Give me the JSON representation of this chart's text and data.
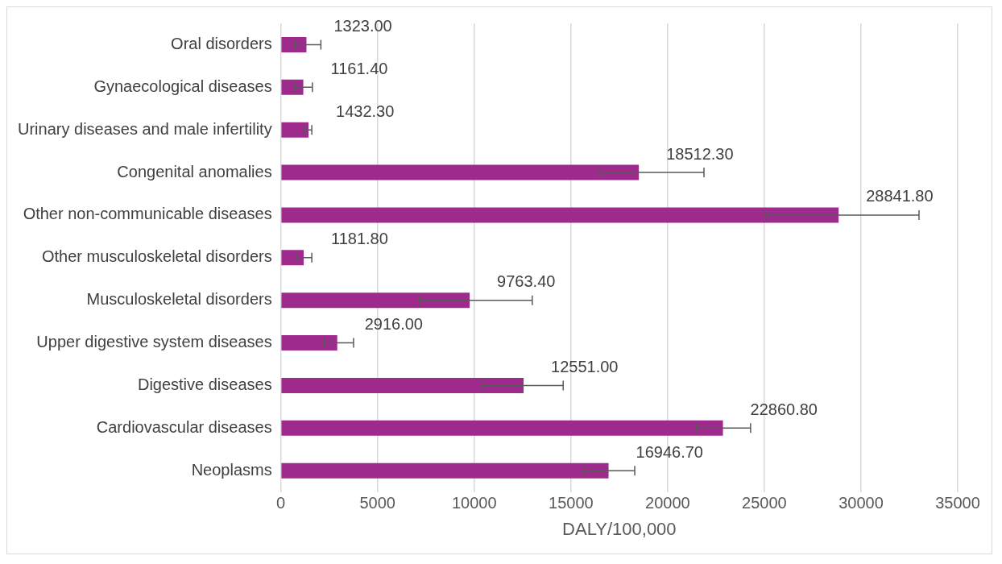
{
  "chart_data": {
    "type": "bar",
    "orientation": "horizontal",
    "xlabel": "DALY/100,000",
    "categories": [
      "Oral disorders",
      "Gynaecological diseases",
      "Urinary diseases and male infertility",
      "Congenital anomalies",
      "Other non-communicable diseases",
      "Other musculoskeletal disorders",
      "Musculoskeletal disorders",
      "Upper digestive system diseases",
      "Digestive diseases",
      "Cardiovascular diseases",
      "Neoplasms"
    ],
    "values": [
      1323.0,
      1161.4,
      1432.3,
      18512.3,
      28841.8,
      1181.8,
      9763.4,
      2916.0,
      12551.0,
      22860.8,
      16946.7
    ],
    "value_labels": [
      "1323.00",
      "1161.40",
      "1432.30",
      "18512.30",
      "28841.80",
      "1181.80",
      "9763.40",
      "2916.00",
      "12551.00",
      "22860.80",
      "16946.70"
    ],
    "errors": [
      [
        750,
        2070
      ],
      [
        750,
        1630
      ],
      [
        1250,
        1600
      ],
      [
        16450,
        21880
      ],
      [
        25050,
        33000
      ],
      [
        800,
        1600
      ],
      [
        7150,
        13000
      ],
      [
        2250,
        3760
      ],
      [
        10380,
        14600
      ],
      [
        21480,
        24290
      ],
      [
        15680,
        18300
      ]
    ],
    "color": "#9e2a8e",
    "xlim": [
      0,
      35000
    ],
    "xticks": [
      0,
      5000,
      10000,
      15000,
      20000,
      25000,
      30000,
      35000
    ],
    "grid": "x",
    "legend": false
  }
}
